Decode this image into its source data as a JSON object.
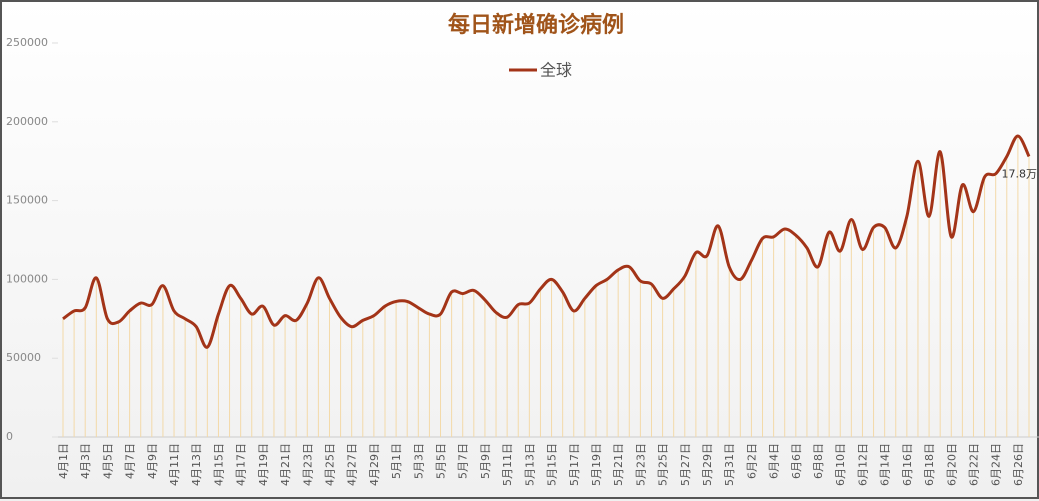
{
  "chart_data": {
    "type": "line",
    "title": "每日新增确诊病例",
    "categories": [
      "4月1日",
      null,
      "4月3日",
      null,
      "4月5日",
      null,
      "4月7日",
      null,
      "4月9日",
      null,
      "4月11日",
      null,
      "4月13日",
      null,
      "4月15日",
      null,
      "4月17日",
      null,
      "4月19日",
      null,
      "4月21日",
      null,
      "4月23日",
      null,
      "4月25日",
      null,
      "4月27日",
      null,
      "4月29日",
      null,
      "5月1日",
      null,
      "5月3日",
      null,
      "5月5日",
      null,
      "5月7日",
      null,
      "5月9日",
      null,
      "5月11日",
      null,
      "5月13日",
      null,
      "5月15日",
      null,
      "5月17日",
      null,
      "5月19日",
      null,
      "5月21日",
      null,
      "5月23日",
      null,
      "5月25日",
      null,
      "5月27日",
      null,
      "5月29日",
      null,
      "5月31日",
      null,
      "6月2日",
      null,
      "6月4日",
      null,
      "6月6日",
      null,
      "6月8日",
      null,
      "6月10日",
      null,
      "6月12日",
      null,
      "6月14日",
      null,
      "6月16日",
      null,
      "6月18日",
      null,
      "6月20日",
      null,
      "6月22日",
      null,
      "6月24日",
      null,
      "6月26日",
      null
    ],
    "series": [
      {
        "name": "全球",
        "color": "#a33418",
        "values": [
          75000,
          80000,
          82000,
          101000,
          75000,
          73000,
          80000,
          85000,
          84000,
          96000,
          80000,
          75000,
          70000,
          57000,
          78000,
          96000,
          88000,
          78000,
          83000,
          71000,
          77000,
          74000,
          85000,
          101000,
          88000,
          76000,
          70000,
          74000,
          77000,
          83000,
          86000,
          86000,
          82000,
          78000,
          78000,
          92000,
          91000,
          93000,
          87000,
          79000,
          76000,
          84000,
          85000,
          94000,
          100000,
          92000,
          80000,
          88000,
          96000,
          100000,
          106000,
          108000,
          99000,
          97000,
          88000,
          94000,
          102000,
          117000,
          115000,
          134000,
          108000,
          100000,
          112000,
          126000,
          127000,
          132000,
          128000,
          120000,
          108000,
          130000,
          118000,
          138000,
          119000,
          133000,
          133000,
          120000,
          140000,
          175000,
          140000,
          181000,
          127000,
          160000,
          143000,
          165000,
          167000,
          178000,
          191000,
          178000
        ],
        "value_labels": [
          null,
          null,
          null,
          null,
          null,
          null,
          null,
          null,
          null,
          null,
          null,
          null,
          null,
          null,
          null,
          null,
          null,
          null,
          null,
          null,
          null,
          null,
          null,
          null,
          null,
          null,
          null,
          null,
          null,
          null,
          null,
          null,
          null,
          null,
          null,
          null,
          null,
          null,
          null,
          null,
          null,
          null,
          null,
          null,
          null,
          null,
          null,
          null,
          null,
          null,
          null,
          null,
          null,
          null,
          null,
          null,
          null,
          null,
          null,
          null,
          null,
          null,
          null,
          null,
          null,
          null,
          null,
          null,
          null,
          null,
          null,
          null,
          null,
          null,
          null,
          null,
          null,
          null,
          null,
          null,
          null,
          null,
          null,
          null,
          null,
          null,
          null,
          "17.8万"
        ]
      }
    ],
    "ylim": [
      0,
      250000
    ],
    "yticks": [
      0,
      50000,
      100000,
      150000,
      200000,
      250000
    ],
    "drop_line_color": "#f3d9a8"
  }
}
